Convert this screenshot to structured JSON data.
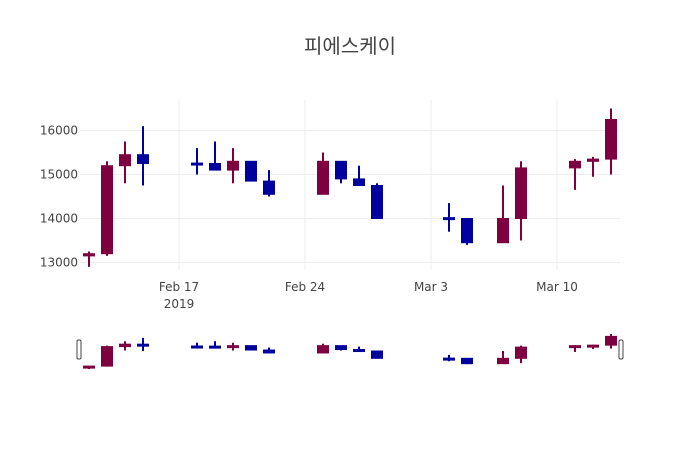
{
  "chart_data": {
    "type": "candlestick",
    "title": "피에스케이",
    "xlabel": "",
    "ylabel": "",
    "ylim": [
      12800,
      16700
    ],
    "yticks": [
      13000,
      14000,
      15000,
      16000
    ],
    "xticks": [
      {
        "date": "2019-02-17",
        "label": "Feb 17",
        "sublabel": "2019"
      },
      {
        "date": "2019-02-24",
        "label": "Feb 24",
        "sublabel": ""
      },
      {
        "date": "2019-03-03",
        "label": "Mar 3",
        "sublabel": ""
      },
      {
        "date": "2019-03-10",
        "label": "Mar 10",
        "sublabel": ""
      }
    ],
    "xrange": [
      "2019-02-11 12:00",
      "2019-03-13 12:00"
    ],
    "grid": true,
    "rangeslider": true,
    "increasing_color": "#7f0041",
    "decreasing_color": "#00009f",
    "candles": [
      {
        "date": "2019-02-12",
        "open": 13150,
        "high": 13250,
        "low": 12900,
        "close": 13200
      },
      {
        "date": "2019-02-13",
        "open": 13200,
        "high": 15300,
        "low": 13150,
        "close": 15200
      },
      {
        "date": "2019-02-14",
        "open": 15200,
        "high": 15750,
        "low": 14800,
        "close": 15450
      },
      {
        "date": "2019-02-15",
        "open": 15450,
        "high": 16100,
        "low": 14750,
        "close": 15250
      },
      {
        "date": "2019-02-18",
        "open": 15260,
        "high": 15600,
        "low": 15000,
        "close": 15240
      },
      {
        "date": "2019-02-19",
        "open": 15250,
        "high": 15750,
        "low": 15100,
        "close": 15100
      },
      {
        "date": "2019-02-20",
        "open": 15100,
        "high": 15600,
        "low": 14800,
        "close": 15300
      },
      {
        "date": "2019-02-21",
        "open": 15300,
        "high": 15300,
        "low": 14850,
        "close": 14850
      },
      {
        "date": "2019-02-22",
        "open": 14850,
        "high": 15100,
        "low": 14500,
        "close": 14550
      },
      {
        "date": "2019-02-25",
        "open": 14550,
        "high": 15500,
        "low": 14550,
        "close": 15300
      },
      {
        "date": "2019-02-26",
        "open": 15300,
        "high": 15300,
        "low": 14800,
        "close": 14900
      },
      {
        "date": "2019-02-27",
        "open": 14900,
        "high": 15200,
        "low": 14750,
        "close": 14750
      },
      {
        "date": "2019-02-28",
        "open": 14750,
        "high": 14800,
        "low": 14000,
        "close": 14000
      },
      {
        "date": "2019-03-04",
        "open": 14020,
        "high": 14350,
        "low": 13700,
        "close": 13980
      },
      {
        "date": "2019-03-05",
        "open": 14000,
        "high": 14000,
        "low": 13400,
        "close": 13450
      },
      {
        "date": "2019-03-07",
        "open": 13450,
        "high": 14750,
        "low": 13450,
        "close": 14000
      },
      {
        "date": "2019-03-08",
        "open": 14000,
        "high": 15300,
        "low": 13500,
        "close": 15150
      },
      {
        "date": "2019-03-11",
        "open": 15150,
        "high": 15350,
        "low": 14650,
        "close": 15300
      },
      {
        "date": "2019-03-12",
        "open": 15300,
        "high": 15400,
        "low": 14950,
        "close": 15350
      },
      {
        "date": "2019-03-13",
        "open": 15350,
        "high": 16500,
        "low": 15000,
        "close": 16250
      }
    ]
  }
}
